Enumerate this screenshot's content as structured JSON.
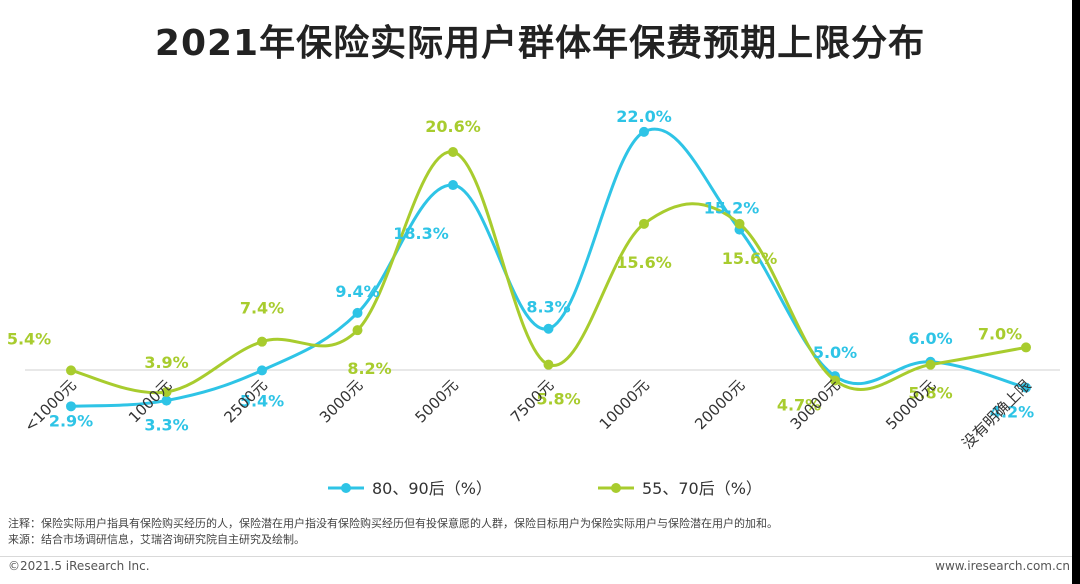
{
  "title": "2021年保险实际用户群体年保费预期上限分布",
  "chart_data": {
    "type": "line",
    "title": "2021年保险实际用户群体年保费预期上限分布",
    "categories": [
      "<1000元",
      "1000元",
      "2500元",
      "3000元",
      "5000元",
      "7500元",
      "10000元",
      "20000元",
      "30000元",
      "50000元",
      "没有明确上限"
    ],
    "series": [
      {
        "name": "80、90后（%）",
        "color": "#2ec4e6",
        "values": [
          2.9,
          3.3,
          5.4,
          9.4,
          18.3,
          8.3,
          22.0,
          15.2,
          5.0,
          6.0,
          4.2
        ],
        "labels": [
          "2.9%",
          "3.3%",
          "5.4%",
          "9.4%",
          "18.3%",
          "8.3%",
          "22.0%",
          "15.2%",
          "5.0%",
          "6.0%",
          "4.2%"
        ]
      },
      {
        "name": "55、70后（%）",
        "color": "#a8cc2e",
        "values": [
          5.4,
          3.9,
          7.4,
          8.2,
          20.6,
          5.8,
          15.6,
          15.6,
          4.7,
          5.8,
          7.0
        ],
        "labels": [
          "5.4%",
          "3.9%",
          "7.4%",
          "8.2%",
          "20.6%",
          "5.8%",
          "15.6%",
          "15.6%",
          "4.7%",
          "5.8%",
          "7.0%"
        ]
      }
    ],
    "ylim": [
      0,
      23
    ],
    "legend": "bottom-center"
  },
  "note": "注释：保险实际用户指具有保险购买经历的人，保险潜在用户指没有保险购买经历但有投保意愿的人群，保险目标用户为保险实际用户与保险潜在用户的加和。",
  "source": "来源：结合市场调研信息，艾瑞咨询研究院自主研究及绘制。",
  "footer": {
    "copyright": "©2021.5 iResearch Inc.",
    "website": "www.iresearch.com.cn"
  }
}
